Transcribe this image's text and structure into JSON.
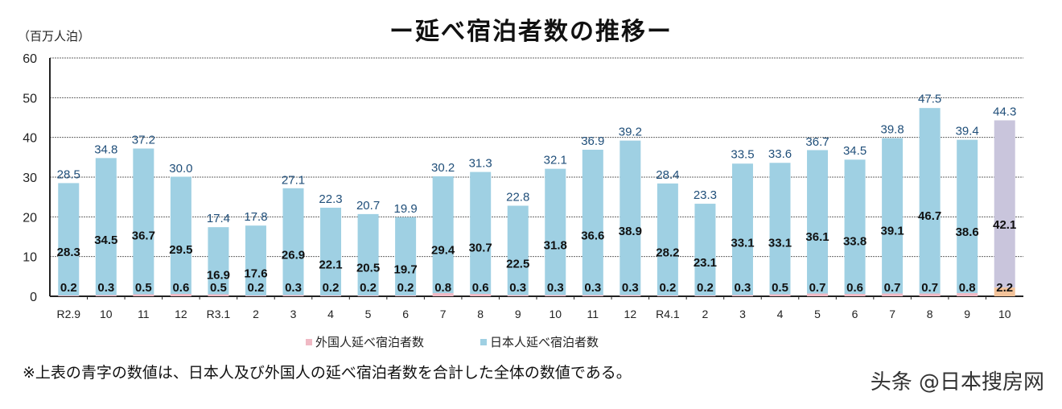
{
  "title": "ー延べ宿泊者数の推移ー",
  "unit": "（百万人泊）",
  "note": "※上表の青字の数値は、日本人及び外国人の延べ宿泊者数を合計した全体の数値である。",
  "watermark": "头条 @日本搜房网",
  "colors": {
    "japanese": "#9fd0e3",
    "foreign": "#f0b9c4",
    "highlight_japanese": "#c9c5dc",
    "highlight_foreign": "#f3c39a",
    "total_label": "#1f4e79",
    "inner_label": "#111111"
  },
  "chart_data": {
    "type": "bar",
    "stacked": true,
    "ylim": [
      0,
      60
    ],
    "yticks": [
      0,
      10,
      20,
      30,
      40,
      50,
      60
    ],
    "grid": true,
    "legend_position": "bottom",
    "categories": [
      "R2.9",
      "10",
      "11",
      "12",
      "R3.1",
      "2",
      "3",
      "4",
      "5",
      "6",
      "7",
      "8",
      "9",
      "10",
      "11",
      "12",
      "R4.1",
      "2",
      "3",
      "4",
      "5",
      "6",
      "7",
      "8",
      "9",
      "10"
    ],
    "series": [
      {
        "name": "外国人延べ宿泊者数",
        "values": [
          0.2,
          0.3,
          0.5,
          0.6,
          0.5,
          0.2,
          0.3,
          0.2,
          0.2,
          0.2,
          0.8,
          0.6,
          0.3,
          0.3,
          0.3,
          0.3,
          0.2,
          0.2,
          0.3,
          0.5,
          0.7,
          0.6,
          0.7,
          0.7,
          0.8,
          2.2
        ]
      },
      {
        "name": "日本人延べ宿泊者数",
        "values": [
          28.3,
          34.5,
          36.7,
          29.5,
          16.9,
          17.6,
          26.9,
          22.1,
          20.5,
          19.7,
          29.4,
          30.7,
          22.5,
          31.8,
          36.6,
          38.9,
          28.2,
          23.1,
          33.1,
          33.1,
          36.1,
          33.8,
          39.1,
          46.7,
          38.6,
          42.1
        ]
      }
    ],
    "totals": [
      28.5,
      34.8,
      37.2,
      30.0,
      17.4,
      17.8,
      27.1,
      22.3,
      20.7,
      19.9,
      30.2,
      31.3,
      22.8,
      32.1,
      36.9,
      39.2,
      28.4,
      23.3,
      33.5,
      33.6,
      36.7,
      34.5,
      39.8,
      47.5,
      39.4,
      44.3
    ]
  }
}
